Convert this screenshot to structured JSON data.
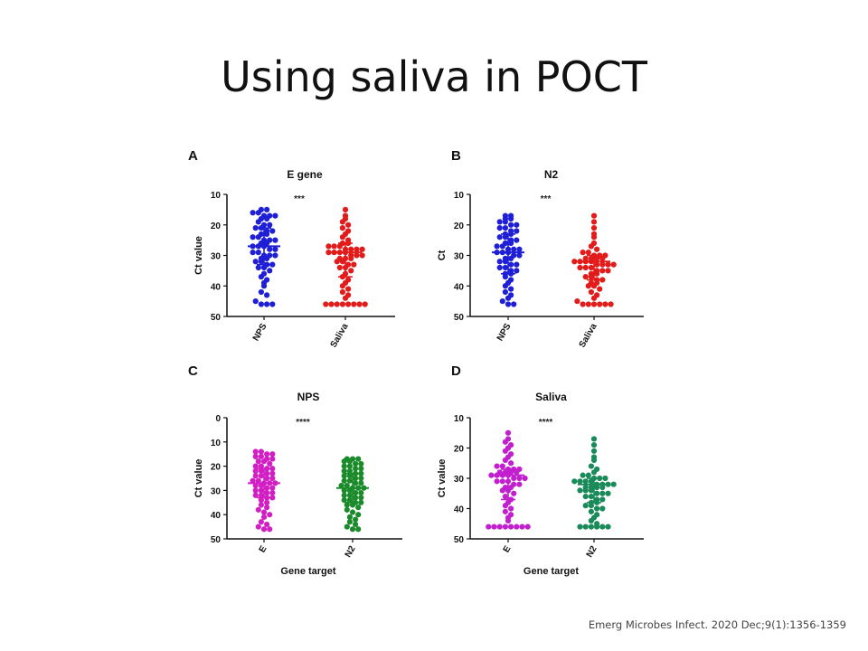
{
  "slide": {
    "title": "Using saliva in POCT",
    "citation": "Emerg Microbes Infect. 2020 Dec;9(1):1356-1359"
  },
  "chart_data": [
    {
      "panel": "A",
      "type": "scatter",
      "title": "E gene",
      "ylabel": "Ct value",
      "xlabel": "",
      "ylim": [
        10,
        50
      ],
      "yticks": [
        10,
        20,
        30,
        40,
        50
      ],
      "y_reversed": true,
      "categories": [
        "NPS",
        "Saliva"
      ],
      "significance": "***",
      "series": [
        {
          "color": "#1f1fd6",
          "median": 27,
          "q1": 21,
          "q3": 33,
          "values": [
            15,
            15,
            16,
            16,
            17,
            17,
            17,
            18,
            18,
            19,
            20,
            20,
            21,
            21,
            22,
            22,
            23,
            23,
            24,
            24,
            25,
            25,
            25,
            26,
            26,
            27,
            27,
            27,
            28,
            28,
            29,
            29,
            30,
            30,
            30,
            31,
            31,
            32,
            32,
            33,
            33,
            34,
            34,
            35,
            36,
            37,
            38,
            39,
            40,
            42,
            43,
            45,
            46,
            46,
            46
          ]
        },
        {
          "color": "#e21b1b",
          "median": 29,
          "q1": 26,
          "q3": 37,
          "values": [
            15,
            17,
            18,
            19,
            20,
            21,
            22,
            23,
            24,
            25,
            26,
            26,
            27,
            27,
            27,
            28,
            28,
            28,
            28,
            29,
            29,
            29,
            29,
            30,
            30,
            30,
            31,
            31,
            31,
            32,
            32,
            33,
            33,
            34,
            34,
            35,
            36,
            37,
            38,
            39,
            40,
            41,
            42,
            43,
            44,
            46,
            46,
            46,
            46,
            46,
            46,
            46,
            46
          ]
        }
      ]
    },
    {
      "panel": "B",
      "type": "scatter",
      "title": "N2",
      "ylabel": "Ct",
      "xlabel": "",
      "ylim": [
        10,
        50
      ],
      "yticks": [
        10,
        20,
        30,
        40,
        50
      ],
      "y_reversed": true,
      "categories": [
        "NPS",
        "Saliva"
      ],
      "significance": "***",
      "series": [
        {
          "color": "#1f1fd6",
          "median": 29,
          "q1": 23,
          "q3": 36,
          "values": [
            17,
            17,
            18,
            18,
            19,
            19,
            20,
            20,
            21,
            21,
            22,
            22,
            23,
            23,
            24,
            24,
            25,
            25,
            26,
            26,
            27,
            27,
            28,
            28,
            28,
            29,
            29,
            29,
            30,
            30,
            31,
            31,
            32,
            32,
            33,
            33,
            34,
            34,
            35,
            35,
            36,
            36,
            37,
            38,
            39,
            40,
            41,
            42,
            43,
            44,
            45,
            46,
            46
          ]
        },
        {
          "color": "#e21b1b",
          "median": 32,
          "q1": 30,
          "q3": 38,
          "values": [
            17,
            19,
            21,
            23,
            24,
            26,
            27,
            28,
            29,
            29,
            30,
            30,
            30,
            31,
            31,
            31,
            31,
            32,
            32,
            32,
            32,
            33,
            33,
            33,
            33,
            34,
            34,
            34,
            35,
            35,
            35,
            36,
            36,
            37,
            37,
            38,
            38,
            39,
            39,
            40,
            40,
            41,
            42,
            43,
            44,
            45,
            46,
            46,
            46,
            46,
            46,
            46
          ]
        }
      ]
    },
    {
      "panel": "C",
      "type": "scatter",
      "title": "NPS",
      "ylabel": "Ct value",
      "xlabel": "Gene target",
      "ylim": [
        0,
        50
      ],
      "yticks": [
        0,
        10,
        20,
        30,
        40,
        50
      ],
      "y_reversed": true,
      "categories": [
        "E",
        "N2"
      ],
      "significance": "****",
      "series": [
        {
          "color": "#d11fc4",
          "median": 27,
          "q1": 21,
          "q3": 33,
          "values": [
            14,
            14,
            15,
            15,
            16,
            16,
            17,
            17,
            18,
            18,
            19,
            20,
            20,
            21,
            21,
            22,
            22,
            23,
            23,
            24,
            24,
            25,
            25,
            26,
            26,
            27,
            27,
            27,
            28,
            28,
            29,
            29,
            30,
            30,
            31,
            31,
            32,
            32,
            33,
            33,
            34,
            35,
            36,
            37,
            38,
            39,
            40,
            41,
            43,
            44,
            45,
            46,
            46
          ]
        },
        {
          "color": "#1a8a2a",
          "median": 29,
          "q1": 23,
          "q3": 35,
          "values": [
            17,
            17,
            17,
            18,
            18,
            19,
            19,
            20,
            20,
            21,
            21,
            22,
            22,
            23,
            23,
            24,
            24,
            25,
            25,
            26,
            26,
            27,
            27,
            28,
            28,
            29,
            29,
            29,
            30,
            30,
            31,
            31,
            32,
            32,
            33,
            33,
            34,
            34,
            35,
            35,
            36,
            36,
            37,
            38,
            39,
            40,
            41,
            42,
            43,
            44,
            45,
            46,
            46
          ]
        }
      ]
    },
    {
      "panel": "D",
      "type": "scatter",
      "title": "Saliva",
      "ylabel": "Ct value",
      "xlabel": "Gene target",
      "ylim": [
        10,
        50
      ],
      "yticks": [
        10,
        20,
        30,
        40,
        50
      ],
      "y_reversed": true,
      "categories": [
        "E",
        "N2"
      ],
      "significance": "****",
      "series": [
        {
          "color": "#c21fcf",
          "median": 29,
          "q1": 27,
          "q3": 37,
          "values": [
            15,
            17,
            18,
            19,
            20,
            21,
            22,
            23,
            24,
            25,
            26,
            26,
            27,
            27,
            27,
            28,
            28,
            28,
            28,
            29,
            29,
            29,
            29,
            30,
            30,
            30,
            31,
            31,
            31,
            32,
            32,
            33,
            33,
            34,
            34,
            35,
            36,
            37,
            38,
            39,
            40,
            41,
            42,
            43,
            44,
            46,
            46,
            46,
            46,
            46,
            46,
            46,
            46
          ]
        },
        {
          "color": "#1a8a5a",
          "median": 32,
          "q1": 30,
          "q3": 38,
          "values": [
            17,
            19,
            21,
            23,
            24,
            26,
            27,
            28,
            29,
            29,
            30,
            30,
            30,
            31,
            31,
            31,
            31,
            32,
            32,
            32,
            32,
            33,
            33,
            33,
            33,
            34,
            34,
            34,
            35,
            35,
            35,
            36,
            36,
            37,
            37,
            38,
            38,
            39,
            39,
            40,
            40,
            41,
            42,
            43,
            44,
            45,
            46,
            46,
            46,
            46,
            46,
            46
          ]
        }
      ]
    }
  ]
}
